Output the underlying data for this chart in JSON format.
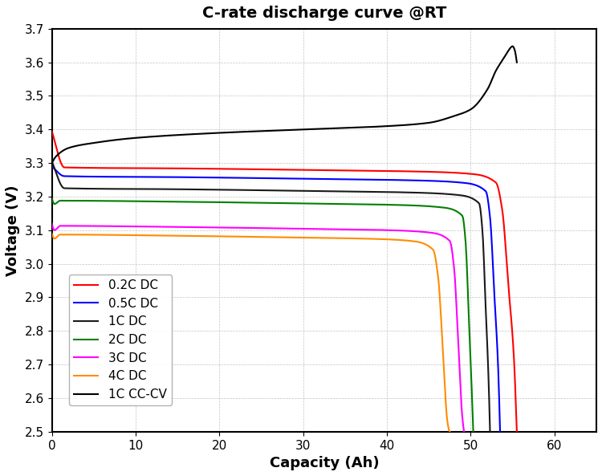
{
  "title": "C-rate discharge curve @RT",
  "xlabel": "Capacity (Ah)",
  "ylabel": "Voltage (V)",
  "xlim": [
    0,
    65
  ],
  "ylim": [
    2.5,
    3.7
  ],
  "xticks": [
    0,
    10,
    20,
    30,
    40,
    50,
    60
  ],
  "yticks": [
    2.5,
    2.6,
    2.7,
    2.8,
    2.9,
    3.0,
    3.1,
    3.2,
    3.3,
    3.4,
    3.5,
    3.6,
    3.7
  ],
  "background_color": "#ffffff",
  "grid_color": "#aaaaaa",
  "title_fontsize": 14,
  "label_fontsize": 13,
  "tick_fontsize": 11,
  "legend_fontsize": 11,
  "curves": {
    "0.2C DC": {
      "color": "#ff0000",
      "flat_voltage": 3.285,
      "start_voltage": 3.39,
      "flat_end_capacity": 53.5,
      "end_capacity": 55.5,
      "cutoff_voltage": 2.5,
      "initial_dip": false,
      "capacity_range": [
        0,
        55.5
      ]
    },
    "0.5C DC": {
      "color": "#0000ff",
      "flat_voltage": 3.255,
      "start_voltage": 3.285,
      "flat_end_capacity": 52.5,
      "end_capacity": 53.5,
      "cutoff_voltage": 2.5,
      "initial_dip": false,
      "capacity_range": [
        0,
        53.5
      ]
    },
    "1C DC": {
      "color": "#000000",
      "flat_voltage": 3.22,
      "start_voltage": 3.3,
      "flat_end_capacity": 51.5,
      "end_capacity": 52.5,
      "cutoff_voltage": 2.5,
      "initial_dip": false,
      "capacity_range": [
        0,
        52.5
      ]
    },
    "2C DC": {
      "color": "#008000",
      "flat_voltage": 3.185,
      "start_voltage": 3.19,
      "flat_end_capacity": 49.5,
      "end_capacity": 50.5,
      "cutoff_voltage": 2.5,
      "initial_dip": true,
      "dip_voltage": 3.18,
      "capacity_range": [
        0,
        50.5
      ]
    },
    "3C DC": {
      "color": "#ff00ff",
      "flat_voltage": 3.11,
      "start_voltage": 3.115,
      "flat_end_capacity": 48.0,
      "end_capacity": 49.5,
      "cutoff_voltage": 2.5,
      "initial_dip": true,
      "dip_voltage": 3.1,
      "capacity_range": [
        0,
        49.5
      ]
    },
    "4C DC": {
      "color": "#ff8c00",
      "flat_voltage": 3.085,
      "start_voltage": 3.09,
      "flat_end_capacity": 46.0,
      "end_capacity": 47.5,
      "cutoff_voltage": 2.5,
      "initial_dip": true,
      "dip_voltage": 3.08,
      "capacity_range": [
        0,
        47.5
      ]
    }
  },
  "cc_cv_color": "#000000",
  "legend_order": [
    "0.2C DC",
    "0.5C DC",
    "1C DC",
    "2C DC",
    "3C DC",
    "4C DC",
    "1C CC-CV"
  ]
}
